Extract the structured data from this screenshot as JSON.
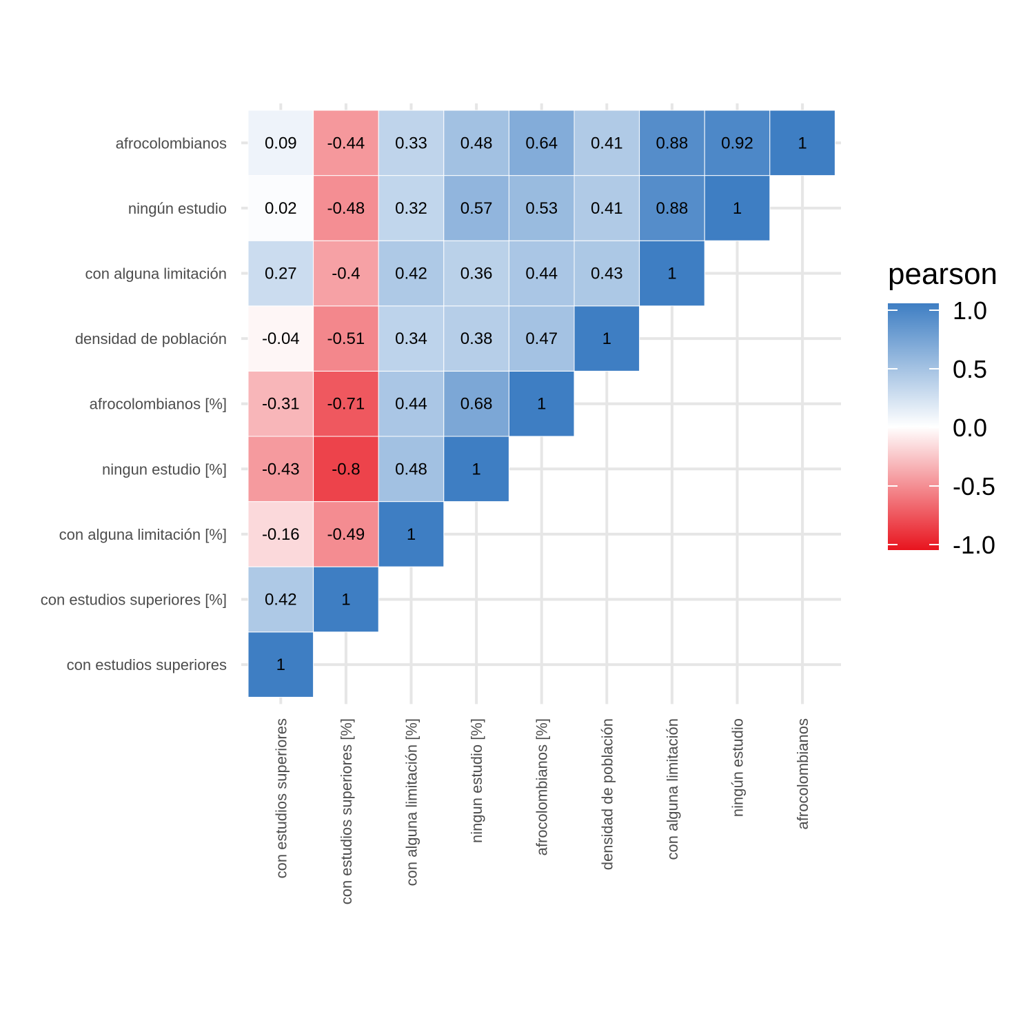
{
  "chart_data": {
    "type": "heatmap",
    "variables": [
      "con estudios superiores",
      "con estudios superiores [%]",
      "con alguna limitación [%]",
      "ningun estudio [%]",
      "afrocolombianos [%]",
      "densidad de población",
      "con alguna limitación",
      "ningún estudio",
      "afrocolombianos"
    ],
    "cells": [
      {
        "x": "con estudios superiores",
        "y": "con estudios superiores",
        "value": 1,
        "label": "1"
      },
      {
        "x": "con estudios superiores",
        "y": "con estudios superiores [%]",
        "value": 0.42,
        "label": "0.42"
      },
      {
        "x": "con estudios superiores",
        "y": "con alguna limitación [%]",
        "value": -0.16,
        "label": "-0.16"
      },
      {
        "x": "con estudios superiores",
        "y": "ningun estudio [%]",
        "value": -0.43,
        "label": "-0.43"
      },
      {
        "x": "con estudios superiores",
        "y": "afrocolombianos [%]",
        "value": -0.31,
        "label": "-0.31"
      },
      {
        "x": "con estudios superiores",
        "y": "densidad de población",
        "value": -0.04,
        "label": "-0.04"
      },
      {
        "x": "con estudios superiores",
        "y": "con alguna limitación",
        "value": 0.27,
        "label": "0.27"
      },
      {
        "x": "con estudios superiores",
        "y": "ningún estudio",
        "value": 0.02,
        "label": "0.02"
      },
      {
        "x": "con estudios superiores",
        "y": "afrocolombianos",
        "value": 0.09,
        "label": "0.09"
      },
      {
        "x": "con estudios superiores [%]",
        "y": "con estudios superiores [%]",
        "value": 1,
        "label": "1"
      },
      {
        "x": "con estudios superiores [%]",
        "y": "con alguna limitación [%]",
        "value": -0.49,
        "label": "-0.49"
      },
      {
        "x": "con estudios superiores [%]",
        "y": "ningun estudio [%]",
        "value": -0.8,
        "label": "-0.8"
      },
      {
        "x": "con estudios superiores [%]",
        "y": "afrocolombianos [%]",
        "value": -0.71,
        "label": "-0.71"
      },
      {
        "x": "con estudios superiores [%]",
        "y": "densidad de población",
        "value": -0.51,
        "label": "-0.51"
      },
      {
        "x": "con estudios superiores [%]",
        "y": "con alguna limitación",
        "value": -0.4,
        "label": "-0.4"
      },
      {
        "x": "con estudios superiores [%]",
        "y": "ningún estudio",
        "value": -0.48,
        "label": "-0.48"
      },
      {
        "x": "con estudios superiores [%]",
        "y": "afrocolombianos",
        "value": -0.44,
        "label": "-0.44"
      },
      {
        "x": "con alguna limitación [%]",
        "y": "con alguna limitación [%]",
        "value": 1,
        "label": "1"
      },
      {
        "x": "con alguna limitación [%]",
        "y": "ningun estudio [%]",
        "value": 0.48,
        "label": "0.48"
      },
      {
        "x": "con alguna limitación [%]",
        "y": "afrocolombianos [%]",
        "value": 0.44,
        "label": "0.44"
      },
      {
        "x": "con alguna limitación [%]",
        "y": "densidad de población",
        "value": 0.34,
        "label": "0.34"
      },
      {
        "x": "con alguna limitación [%]",
        "y": "con alguna limitación",
        "value": 0.42,
        "label": "0.42"
      },
      {
        "x": "con alguna limitación [%]",
        "y": "ningún estudio",
        "value": 0.32,
        "label": "0.32"
      },
      {
        "x": "con alguna limitación [%]",
        "y": "afrocolombianos",
        "value": 0.33,
        "label": "0.33"
      },
      {
        "x": "ningun estudio [%]",
        "y": "ningun estudio [%]",
        "value": 1,
        "label": "1"
      },
      {
        "x": "ningun estudio [%]",
        "y": "afrocolombianos [%]",
        "value": 0.68,
        "label": "0.68"
      },
      {
        "x": "ningun estudio [%]",
        "y": "densidad de población",
        "value": 0.38,
        "label": "0.38"
      },
      {
        "x": "ningun estudio [%]",
        "y": "con alguna limitación",
        "value": 0.36,
        "label": "0.36"
      },
      {
        "x": "ningun estudio [%]",
        "y": "ningún estudio",
        "value": 0.57,
        "label": "0.57"
      },
      {
        "x": "ningun estudio [%]",
        "y": "afrocolombianos",
        "value": 0.48,
        "label": "0.48"
      },
      {
        "x": "afrocolombianos [%]",
        "y": "afrocolombianos [%]",
        "value": 1,
        "label": "1"
      },
      {
        "x": "afrocolombianos [%]",
        "y": "densidad de población",
        "value": 0.47,
        "label": "0.47"
      },
      {
        "x": "afrocolombianos [%]",
        "y": "con alguna limitación",
        "value": 0.44,
        "label": "0.44"
      },
      {
        "x": "afrocolombianos [%]",
        "y": "ningún estudio",
        "value": 0.53,
        "label": "0.53"
      },
      {
        "x": "afrocolombianos [%]",
        "y": "afrocolombianos",
        "value": 0.64,
        "label": "0.64"
      },
      {
        "x": "densidad de población",
        "y": "densidad de población",
        "value": 1,
        "label": "1"
      },
      {
        "x": "densidad de población",
        "y": "con alguna limitación",
        "value": 0.43,
        "label": "0.43"
      },
      {
        "x": "densidad de población",
        "y": "ningún estudio",
        "value": 0.41,
        "label": "0.41"
      },
      {
        "x": "densidad de población",
        "y": "afrocolombianos",
        "value": 0.41,
        "label": "0.41"
      },
      {
        "x": "con alguna limitación",
        "y": "con alguna limitación",
        "value": 1,
        "label": "1"
      },
      {
        "x": "con alguna limitación",
        "y": "ningún estudio",
        "value": 0.88,
        "label": "0.88"
      },
      {
        "x": "con alguna limitación",
        "y": "afrocolombianos",
        "value": 0.88,
        "label": "0.88"
      },
      {
        "x": "ningún estudio",
        "y": "ningún estudio",
        "value": 1,
        "label": "1"
      },
      {
        "x": "ningún estudio",
        "y": "afrocolombianos",
        "value": 0.92,
        "label": "0.92"
      },
      {
        "x": "afrocolombianos",
        "y": "afrocolombianos",
        "value": 1,
        "label": "1"
      }
    ],
    "legend": {
      "title": "pearson",
      "range": [
        -1,
        1
      ],
      "ticks": [
        1.0,
        0.5,
        0.0,
        -0.5,
        -1.0
      ],
      "tick_labels": [
        "1.0",
        "0.5",
        "0.0",
        "-0.5",
        "-1.0"
      ],
      "placement": "right"
    },
    "colors": {
      "negative": "#e8141e",
      "midpoint": "#ffffff",
      "positive": "#3e7ec3"
    },
    "grid": true
  }
}
